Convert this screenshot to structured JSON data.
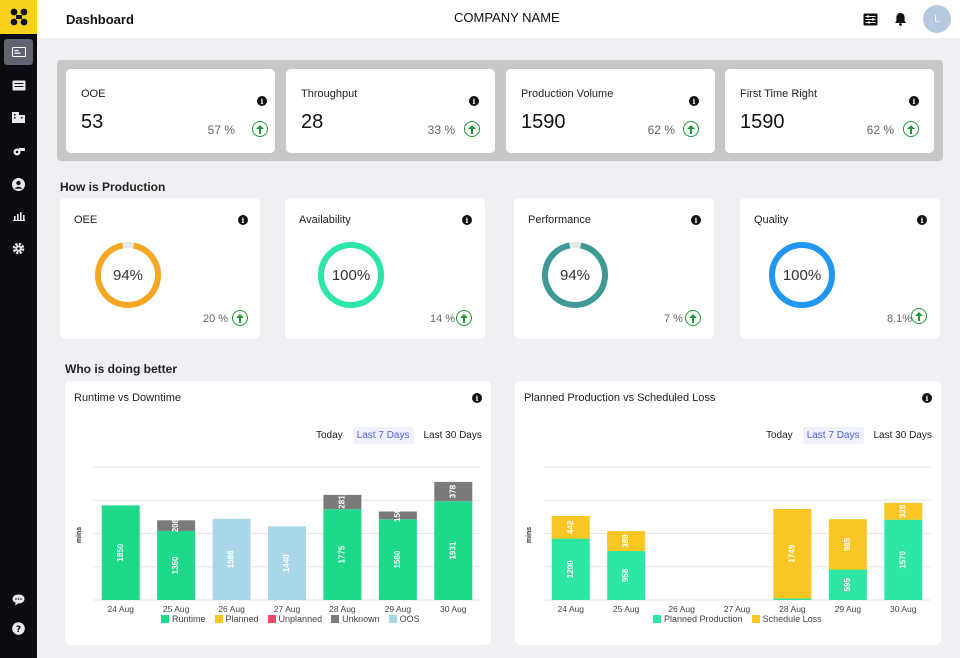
{
  "app": {
    "title": "Dashboard",
    "company": "COMPANY NAME",
    "avatar_initial": "L"
  },
  "sidebar": {
    "items": [
      "dashboard-icon",
      "list-icon",
      "building-icon",
      "machine-icon",
      "user-icon",
      "chart-icon",
      "gear-icon"
    ],
    "bottom": [
      "chat-icon",
      "help-icon"
    ]
  },
  "kpis": [
    {
      "label": "OOE",
      "value": "53",
      "change": "57 %"
    },
    {
      "label": "Throughput",
      "value": "28",
      "change": "33 %"
    },
    {
      "label": "Production Volume",
      "value": "1590",
      "change": "62 %"
    },
    {
      "label": "First Time Right",
      "value": "1590",
      "change": "62 %"
    }
  ],
  "sections": {
    "production": "How is Production",
    "better": "Who is doing better"
  },
  "gauges": [
    {
      "label": "OEE",
      "value": "94%",
      "fraction": 0.94,
      "change": "20 %",
      "color": "#f5a623"
    },
    {
      "label": "Availability",
      "value": "100%",
      "fraction": 1.0,
      "change": "14 %",
      "color": "#2ee6a4"
    },
    {
      "label": "Performance",
      "value": "94%",
      "fraction": 0.94,
      "change": "7 %",
      "color": "#3f9a97"
    },
    {
      "label": "Quality",
      "value": "100%",
      "fraction": 1.0,
      "change": "8.1%",
      "color": "#2196f3"
    }
  ],
  "colors": {
    "runtime": "#1fd98a",
    "planned": "#f9c623",
    "unplanned": "#f0476a",
    "unknown": "#7a7a7a",
    "oos": "#a9d7e8",
    "planned_production": "#2ee6a4",
    "schedule_loss": "#f9c623"
  },
  "range_tabs": [
    "Today",
    "Last 7 Days",
    "Last 30 Days"
  ],
  "chart_data": [
    {
      "type": "bar",
      "title": "Runtime vs Downtime",
      "ylabel": "mins",
      "stacked": true,
      "categories": [
        "24 Aug",
        "25 Aug",
        "26 Aug",
        "27 Aug",
        "28 Aug",
        "29 Aug",
        "30 Aug"
      ],
      "series": [
        {
          "name": "Runtime",
          "values": [
            1850,
            1350,
            0,
            0,
            1775,
            1580,
            1931
          ]
        },
        {
          "name": "Planned",
          "values": [
            0,
            0,
            0,
            0,
            0,
            0,
            0
          ]
        },
        {
          "name": "Unplanned",
          "values": [
            0,
            0,
            0,
            0,
            0,
            0,
            0
          ]
        },
        {
          "name": "Unknown",
          "values": [
            0,
            208,
            0,
            0,
            281,
            150,
            378
          ]
        },
        {
          "name": "OOS",
          "values": [
            0,
            0,
            1588,
            1440,
            0,
            0,
            0
          ]
        }
      ],
      "labels": [
        [
          "1850"
        ],
        [
          "1350",
          "208"
        ],
        [
          "1588"
        ],
        [
          "1440"
        ],
        [
          "1775",
          "281"
        ],
        [
          "1580",
          "150"
        ],
        [
          "1931",
          "378"
        ]
      ],
      "ylim": [
        0,
        2600
      ]
    },
    {
      "type": "bar",
      "title": "Planned Production vs Scheduled Loss",
      "ylabel": "mins",
      "stacked": true,
      "categories": [
        "24 Aug",
        "25 Aug",
        "26 Aug",
        "27 Aug",
        "28 Aug",
        "29 Aug",
        "30 Aug"
      ],
      "series": [
        {
          "name": "Planned Production",
          "values": [
            1200,
            958,
            0,
            0,
            30,
            595,
            1570
          ]
        },
        {
          "name": "Schedule Loss",
          "values": [
            442,
            389,
            0,
            0,
            1749,
            985,
            328
          ]
        }
      ],
      "labels": [
        [
          "1200",
          "442"
        ],
        [
          "958",
          "389"
        ],
        [],
        [],
        [
          "",
          "1749"
        ],
        [
          "595",
          "985"
        ],
        [
          "1570",
          "328"
        ]
      ],
      "ylim": [
        0,
        2600
      ]
    }
  ]
}
